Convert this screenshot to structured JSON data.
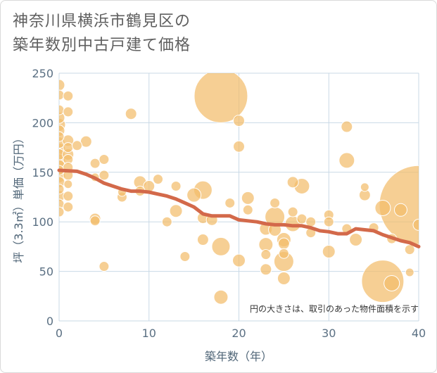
{
  "title": {
    "line1": "神奈川県横浜市鶴見区の",
    "line2": "築年数別中古戸建て価格"
  },
  "chart_data": {
    "type": "scatter",
    "xlabel": "築年数（年）",
    "ylabel": "坪（3.3㎡）単価（万円）",
    "xlim": [
      0,
      40
    ],
    "ylim": [
      0,
      250
    ],
    "x_ticks": [
      0,
      10,
      20,
      30,
      40
    ],
    "y_ticks": [
      0,
      50,
      100,
      150,
      200,
      250
    ],
    "grid": true,
    "annotation": "円の大きさは、取引のあった物件面積を示す",
    "colors": {
      "bubble": "#f2bd6b",
      "trend": "#d3694a",
      "grid": "#c9d9e6"
    },
    "bubbles": [
      {
        "x": 0,
        "y": 238,
        "s": 8
      },
      {
        "x": 0,
        "y": 228,
        "s": 7
      },
      {
        "x": 0,
        "y": 213,
        "s": 7
      },
      {
        "x": 0,
        "y": 205,
        "s": 8
      },
      {
        "x": 0,
        "y": 198,
        "s": 9
      },
      {
        "x": 0,
        "y": 192,
        "s": 8
      },
      {
        "x": 0,
        "y": 186,
        "s": 7
      },
      {
        "x": 0,
        "y": 180,
        "s": 8
      },
      {
        "x": 0,
        "y": 173,
        "s": 9
      },
      {
        "x": 0,
        "y": 168,
        "s": 8
      },
      {
        "x": 0,
        "y": 162,
        "s": 9
      },
      {
        "x": 0,
        "y": 157,
        "s": 8
      },
      {
        "x": 0,
        "y": 152,
        "s": 7
      },
      {
        "x": 0,
        "y": 146,
        "s": 9
      },
      {
        "x": 0,
        "y": 140,
        "s": 8
      },
      {
        "x": 0,
        "y": 133,
        "s": 7
      },
      {
        "x": 0,
        "y": 126,
        "s": 8
      },
      {
        "x": 0,
        "y": 118,
        "s": 7
      },
      {
        "x": 0,
        "y": 110,
        "s": 7
      },
      {
        "x": 1,
        "y": 227,
        "s": 7
      },
      {
        "x": 1,
        "y": 211,
        "s": 7
      },
      {
        "x": 1,
        "y": 182,
        "s": 8
      },
      {
        "x": 1,
        "y": 175,
        "s": 7
      },
      {
        "x": 1,
        "y": 168,
        "s": 8
      },
      {
        "x": 1,
        "y": 163,
        "s": 7
      },
      {
        "x": 1,
        "y": 155,
        "s": 7
      },
      {
        "x": 1,
        "y": 147,
        "s": 7
      },
      {
        "x": 1,
        "y": 138,
        "s": 6
      },
      {
        "x": 1,
        "y": 126,
        "s": 7
      },
      {
        "x": 1,
        "y": 115,
        "s": 7
      },
      {
        "x": 2,
        "y": 177,
        "s": 7
      },
      {
        "x": 3,
        "y": 181,
        "s": 8
      },
      {
        "x": 4,
        "y": 159,
        "s": 7
      },
      {
        "x": 4,
        "y": 145,
        "s": 6
      },
      {
        "x": 4,
        "y": 103,
        "s": 8
      },
      {
        "x": 4,
        "y": 101,
        "s": 7
      },
      {
        "x": 5,
        "y": 163,
        "s": 7
      },
      {
        "x": 5,
        "y": 147,
        "s": 7
      },
      {
        "x": 5,
        "y": 55,
        "s": 7
      },
      {
        "x": 7,
        "y": 125,
        "s": 7
      },
      {
        "x": 7,
        "y": 130,
        "s": 6
      },
      {
        "x": 8,
        "y": 209,
        "s": 8
      },
      {
        "x": 9,
        "y": 140,
        "s": 9
      },
      {
        "x": 9,
        "y": 131,
        "s": 7
      },
      {
        "x": 10,
        "y": 136,
        "s": 8
      },
      {
        "x": 11,
        "y": 143,
        "s": 7
      },
      {
        "x": 12,
        "y": 100,
        "s": 7
      },
      {
        "x": 13,
        "y": 136,
        "s": 7
      },
      {
        "x": 13,
        "y": 111,
        "s": 9
      },
      {
        "x": 14,
        "y": 65,
        "s": 7
      },
      {
        "x": 15,
        "y": 127,
        "s": 10
      },
      {
        "x": 16,
        "y": 132,
        "s": 13
      },
      {
        "x": 16,
        "y": 104,
        "s": 8
      },
      {
        "x": 16,
        "y": 82,
        "s": 8
      },
      {
        "x": 17,
        "y": 102,
        "s": 8
      },
      {
        "x": 18,
        "y": 227,
        "s": 38
      },
      {
        "x": 18,
        "y": 75,
        "s": 13
      },
      {
        "x": 18,
        "y": 24,
        "s": 10
      },
      {
        "x": 19,
        "y": 119,
        "s": 7
      },
      {
        "x": 20,
        "y": 202,
        "s": 8
      },
      {
        "x": 20,
        "y": 176,
        "s": 8
      },
      {
        "x": 20,
        "y": 61,
        "s": 9
      },
      {
        "x": 21,
        "y": 124,
        "s": 9
      },
      {
        "x": 21,
        "y": 112,
        "s": 7
      },
      {
        "x": 23,
        "y": 93,
        "s": 9
      },
      {
        "x": 23,
        "y": 77,
        "s": 10
      },
      {
        "x": 23,
        "y": 67,
        "s": 7
      },
      {
        "x": 23,
        "y": 52,
        "s": 8
      },
      {
        "x": 24,
        "y": 119,
        "s": 7
      },
      {
        "x": 24,
        "y": 105,
        "s": 14
      },
      {
        "x": 24,
        "y": 92,
        "s": 9
      },
      {
        "x": 25,
        "y": 82,
        "s": 10
      },
      {
        "x": 25,
        "y": 78,
        "s": 8
      },
      {
        "x": 25,
        "y": 68,
        "s": 7
      },
      {
        "x": 25,
        "y": 60,
        "s": 14
      },
      {
        "x": 25,
        "y": 43,
        "s": 9
      },
      {
        "x": 26,
        "y": 140,
        "s": 8
      },
      {
        "x": 26,
        "y": 110,
        "s": 7
      },
      {
        "x": 26,
        "y": 98,
        "s": 11
      },
      {
        "x": 27,
        "y": 136,
        "s": 11
      },
      {
        "x": 27,
        "y": 103,
        "s": 7
      },
      {
        "x": 28,
        "y": 100,
        "s": 7
      },
      {
        "x": 28,
        "y": 89,
        "s": 7
      },
      {
        "x": 30,
        "y": 107,
        "s": 7
      },
      {
        "x": 30,
        "y": 100,
        "s": 7
      },
      {
        "x": 30,
        "y": 70,
        "s": 9
      },
      {
        "x": 32,
        "y": 196,
        "s": 8
      },
      {
        "x": 32,
        "y": 162,
        "s": 11
      },
      {
        "x": 32,
        "y": 93,
        "s": 7
      },
      {
        "x": 33,
        "y": 82,
        "s": 9
      },
      {
        "x": 34,
        "y": 135,
        "s": 6
      },
      {
        "x": 34,
        "y": 127,
        "s": 8
      },
      {
        "x": 35,
        "y": 94,
        "s": 7
      },
      {
        "x": 36,
        "y": 114,
        "s": 11
      },
      {
        "x": 36,
        "y": 40,
        "s": 30
      },
      {
        "x": 37,
        "y": 38,
        "s": 11
      },
      {
        "x": 37,
        "y": 83,
        "s": 7
      },
      {
        "x": 38,
        "y": 112,
        "s": 9
      },
      {
        "x": 39,
        "y": 72,
        "s": 7
      },
      {
        "x": 39,
        "y": 49,
        "s": 6
      },
      {
        "x": 40,
        "y": 117,
        "s": 56
      },
      {
        "x": 40,
        "y": 97,
        "s": 8
      }
    ],
    "trend": {
      "x": [
        0,
        2,
        3,
        4,
        5,
        6,
        7,
        8,
        9,
        10,
        11,
        12,
        13,
        14,
        15,
        16,
        17,
        18,
        19,
        20,
        21,
        22,
        23,
        24,
        25,
        26,
        27,
        28,
        29,
        30,
        31,
        32,
        33,
        34,
        35,
        36,
        37,
        38,
        39,
        40
      ],
      "y": [
        152,
        151,
        148,
        144,
        139,
        136,
        133,
        131,
        131,
        130,
        128,
        126,
        123,
        119,
        115,
        108,
        106,
        106,
        106,
        102,
        101,
        100,
        98,
        97,
        97,
        96,
        96,
        94,
        91,
        90,
        88,
        88,
        93,
        92,
        91,
        87,
        84,
        81,
        79,
        75
      ]
    }
  }
}
